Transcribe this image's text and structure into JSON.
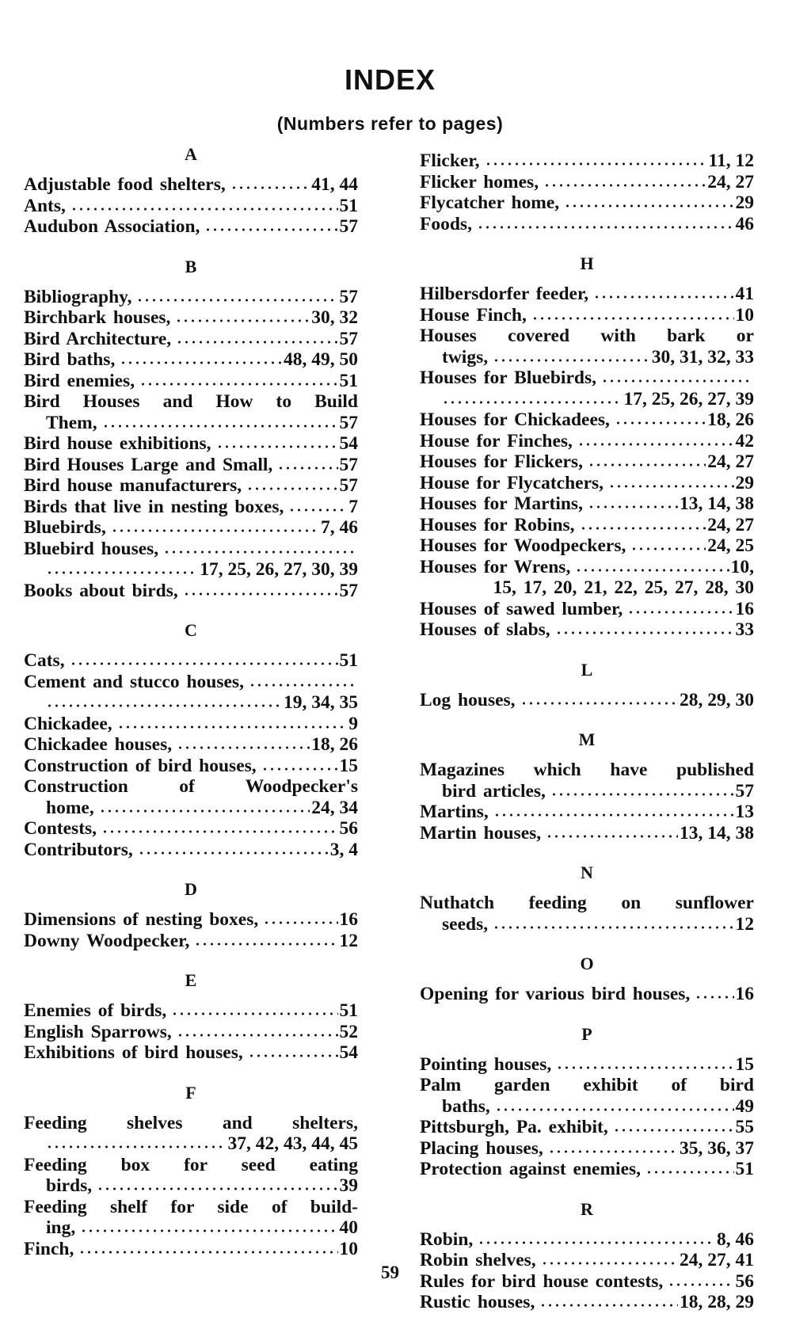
{
  "title": "INDEX",
  "subtitle": "(Numbers refer to pages)",
  "page_number": "59",
  "columns": [
    [
      {
        "h": "A"
      },
      {
        "t": "Adjustable food shelters,",
        "p": "41, 44"
      },
      {
        "t": "Ants,",
        "p": "51"
      },
      {
        "t": "Audubon Association,",
        "p": "57"
      },
      {
        "h": "B"
      },
      {
        "t": "Bibliography,",
        "p": "57"
      },
      {
        "t": "Birchbark houses,",
        "p": "30, 32"
      },
      {
        "t": "Bird Architecture,",
        "p": "57"
      },
      {
        "t": "Bird baths,",
        "p": "48, 49, 50"
      },
      {
        "t": "Bird enemies,",
        "p": "51"
      },
      {
        "t": "Bird Houses and How to Build",
        "j": true
      },
      {
        "t": "Them,",
        "p": "57",
        "i": true
      },
      {
        "t": "Bird house exhibitions,",
        "p": "54"
      },
      {
        "t": "Bird Houses Large and Small,",
        "p": "57"
      },
      {
        "t": "Bird house manufacturers,",
        "p": "57"
      },
      {
        "t": "Birds that live in nesting boxes,",
        "p": "7"
      },
      {
        "t": "Bluebirds,",
        "p": "7, 46"
      },
      {
        "t": "Bluebird houses,",
        "l": true
      },
      {
        "t": "",
        "p": "17, 25, 26, 27, 30, 39",
        "i": true
      },
      {
        "t": "Books about birds,",
        "p": "57"
      },
      {
        "h": "C"
      },
      {
        "t": "Cats,",
        "p": "51"
      },
      {
        "t": "Cement and stucco houses,",
        "l": true
      },
      {
        "t": "",
        "p": "19, 34, 35",
        "i": true
      },
      {
        "t": "Chickadee,",
        "p": "9"
      },
      {
        "t": "Chickadee houses,",
        "p": "18, 26"
      },
      {
        "t": "Construction of bird houses,",
        "p": "15"
      },
      {
        "t": "Construction of Woodpecker's",
        "j": true
      },
      {
        "t": "home,",
        "p": "24, 34",
        "i": true
      },
      {
        "t": "Contests,",
        "p": "56"
      },
      {
        "t": "Contributors,",
        "p": "3, 4"
      },
      {
        "h": "D"
      },
      {
        "t": "Dimensions of nesting boxes,",
        "p": "16"
      },
      {
        "t": "Downy Woodpecker,",
        "p": "12"
      },
      {
        "h": "E"
      },
      {
        "t": "Enemies of birds,",
        "p": "51"
      },
      {
        "t": "English Sparrows,",
        "p": "52"
      },
      {
        "t": "Exhibitions of bird houses,",
        "p": "54"
      },
      {
        "h": "F"
      },
      {
        "t": "Feeding shelves and shelters,",
        "j": true
      },
      {
        "t": "",
        "p": "37, 42, 43, 44, 45",
        "i": true
      },
      {
        "t": "Feeding box for seed eating",
        "j": true
      },
      {
        "t": "birds,",
        "p": "39",
        "i": true
      },
      {
        "t": "Feeding shelf for side of build-",
        "j": true
      },
      {
        "t": "ing,",
        "p": "40",
        "i": true
      },
      {
        "t": "Finch,",
        "p": "10"
      }
    ],
    [
      {
        "t": "Flicker,",
        "p": "11, 12"
      },
      {
        "t": "Flicker homes,",
        "p": "24, 27"
      },
      {
        "t": "Flycatcher home,",
        "p": "29"
      },
      {
        "t": "Foods,",
        "p": "46"
      },
      {
        "h": "H"
      },
      {
        "t": "Hilbersdorfer feeder,",
        "p": "41"
      },
      {
        "t": "House Finch,",
        "p": "10"
      },
      {
        "t": "Houses covered with bark or",
        "j": true
      },
      {
        "t": "twigs,",
        "p": "30, 31, 32, 33",
        "i": true
      },
      {
        "t": "Houses for Bluebirds,",
        "l": true
      },
      {
        "t": "",
        "p": "17, 25, 26, 27, 39",
        "i": true
      },
      {
        "t": "Houses for Chickadees,",
        "p": "18, 26"
      },
      {
        "t": "House for Finches,",
        "p": "42"
      },
      {
        "t": "Houses for Flickers,",
        "p": "24, 27"
      },
      {
        "t": "House for Flycatchers,",
        "p": "29"
      },
      {
        "t": "Houses for Martins,",
        "p": "13, 14, 38"
      },
      {
        "t": "Houses for Robins,",
        "p": "24, 27"
      },
      {
        "t": "Houses for Woodpeckers,",
        "p": "24, 25"
      },
      {
        "t": "Houses for Wrens,",
        "p": "10,"
      },
      {
        "t": "15, 17, 20, 21, 22, 25, 27, 28, 30",
        "i": true,
        "r": true
      },
      {
        "t": "Houses of sawed lumber,",
        "p": "16"
      },
      {
        "t": "Houses of slabs,",
        "p": "33"
      },
      {
        "h": "L"
      },
      {
        "t": "Log houses,",
        "p": "28, 29, 30"
      },
      {
        "h": "M"
      },
      {
        "t": "Magazines which have published",
        "j": true
      },
      {
        "t": "bird articles,",
        "p": "57",
        "i": true
      },
      {
        "t": "Martins,",
        "p": "13"
      },
      {
        "t": "Martin houses,",
        "p": "13, 14, 38"
      },
      {
        "h": "N"
      },
      {
        "t": "Nuthatch feeding on sunflower",
        "j": true
      },
      {
        "t": "seeds,",
        "p": "12",
        "i": true
      },
      {
        "h": "O"
      },
      {
        "t": "Opening for various bird houses,",
        "p": "16"
      },
      {
        "h": "P"
      },
      {
        "t": "Pointing houses,",
        "p": "15"
      },
      {
        "t": "Palm garden exhibit of bird",
        "j": true
      },
      {
        "t": "baths,",
        "p": "49",
        "i": true
      },
      {
        "t": "Pittsburgh, Pa. exhibit,",
        "p": "55"
      },
      {
        "t": "Placing houses,",
        "p": "35, 36, 37"
      },
      {
        "t": "Protection against enemies,",
        "p": "51"
      },
      {
        "h": "R"
      },
      {
        "t": "Robin,",
        "p": "8, 46"
      },
      {
        "t": "Robin shelves,",
        "p": "24, 27, 41"
      },
      {
        "t": "Rules for bird house contests,",
        "p": "56"
      },
      {
        "t": "Rustic houses,",
        "p": "18, 28, 29"
      }
    ]
  ]
}
